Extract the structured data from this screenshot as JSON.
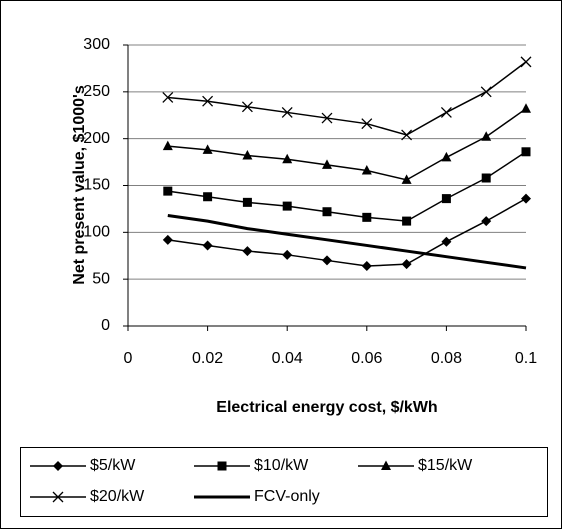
{
  "chart_data": {
    "type": "line",
    "y_label": "Net present value, $1000's",
    "x_label": "Electrical energy cost, $/kWh",
    "x": [
      0.01,
      0.02,
      0.03,
      0.04,
      0.05,
      0.06,
      0.07,
      0.08,
      0.09,
      0.1
    ],
    "xlim": [
      0,
      0.1
    ],
    "xticks": [
      0,
      0.02,
      0.04,
      0.06,
      0.08,
      0.1
    ],
    "ylim": [
      0,
      300
    ],
    "yticks": [
      0,
      50,
      100,
      150,
      200,
      250,
      300
    ],
    "grid": true,
    "series": [
      {
        "name": "$5/kW",
        "color": "#000000",
        "marker": "diamond",
        "values": [
          92,
          86,
          80,
          76,
          70,
          64,
          66,
          90,
          112,
          136
        ]
      },
      {
        "name": "$10/kW",
        "color": "#000000",
        "marker": "square",
        "values": [
          144,
          138,
          132,
          128,
          122,
          116,
          112,
          136,
          158,
          186
        ]
      },
      {
        "name": "$15/kW",
        "color": "#000000",
        "marker": "triangle",
        "values": [
          192,
          188,
          182,
          178,
          172,
          166,
          156,
          180,
          202,
          232
        ]
      },
      {
        "name": "$20/kW",
        "color": "#000000",
        "marker": "cross",
        "values": [
          244,
          240,
          234,
          228,
          222,
          216,
          204,
          228,
          250,
          282
        ]
      },
      {
        "name": "FCV-only",
        "color": "#000000",
        "marker": "none",
        "values": [
          118,
          112,
          104,
          98,
          92,
          86,
          80,
          74,
          68,
          62
        ]
      }
    ]
  }
}
